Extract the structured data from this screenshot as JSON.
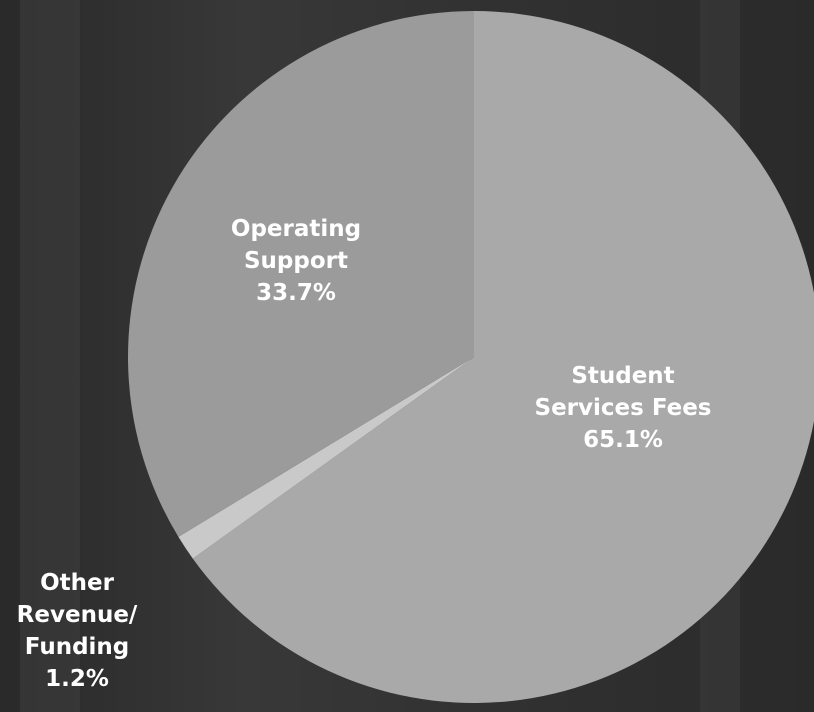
{
  "chart_data": {
    "type": "pie",
    "categories": [
      "Student Services Fees",
      "Other Revenue/ Funding",
      "Operating Support"
    ],
    "values": [
      65.1,
      1.2,
      33.7
    ],
    "value_labels": [
      "65.1%",
      "1.2%",
      "33.7%"
    ],
    "colors": [
      "#a9a9a9",
      "#c9c9c9",
      "#9b9b9b"
    ]
  }
}
